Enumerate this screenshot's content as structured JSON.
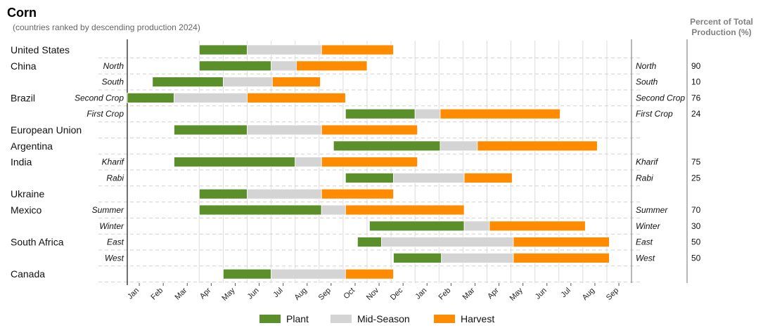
{
  "title": "Corn",
  "subtitle": "(countries ranked by descending production 2024)",
  "right_header": [
    "Percent of Total",
    "Production (%)"
  ],
  "colors": {
    "plant": "#5b8f29",
    "mid": "#d4d4d4",
    "harvest": "#ff8c00"
  },
  "legend": [
    {
      "key": "plant",
      "label": "Plant"
    },
    {
      "key": "mid",
      "label": "Mid-Season"
    },
    {
      "key": "harvest",
      "label": "Harvest"
    }
  ],
  "chart_data": {
    "type": "gantt",
    "months": [
      "Jan",
      "Feb",
      "Mar",
      "Apr",
      "May",
      "Jun",
      "Jul",
      "Aug",
      "Sep",
      "Oct",
      "Nov",
      "Dec",
      "Jan",
      "Feb",
      "Mar",
      "Apr",
      "May",
      "Jun",
      "Jul",
      "Aug",
      "Sep"
    ],
    "rows": [
      {
        "country": "United States",
        "region": "",
        "percent": "",
        "plant": [
          3.0,
          5.0
        ],
        "mid": [
          5.0,
          8.1
        ],
        "harvest": [
          8.1,
          11.1
        ]
      },
      {
        "country": "China",
        "region": "North",
        "percent": "90",
        "plant": [
          3.0,
          6.0
        ],
        "mid": [
          6.0,
          7.05
        ],
        "harvest": [
          7.05,
          10.0
        ]
      },
      {
        "country": "",
        "region": "South",
        "percent": "10",
        "plant": [
          1.05,
          4.0
        ],
        "mid": [
          4.0,
          6.05
        ],
        "harvest": [
          6.05,
          8.05
        ]
      },
      {
        "country": "Brazil",
        "region": "Second Crop",
        "percent": "76",
        "plant": [
          0.0,
          1.95
        ],
        "mid": [
          1.95,
          5.0
        ],
        "harvest": [
          5.0,
          9.1
        ]
      },
      {
        "country": "",
        "region": "First Crop",
        "percent": "24",
        "plant": [
          9.1,
          12.0
        ],
        "mid": [
          12.0,
          13.05
        ],
        "harvest": [
          13.05,
          18.05
        ]
      },
      {
        "country": "European Union",
        "region": "",
        "percent": "",
        "plant": [
          1.95,
          5.0
        ],
        "mid": [
          5.0,
          8.1
        ],
        "harvest": [
          8.1,
          12.1
        ]
      },
      {
        "country": "Argentina",
        "region": "",
        "percent": "",
        "plant": [
          8.6,
          13.05
        ],
        "mid": [
          13.05,
          14.6
        ],
        "harvest": [
          14.6,
          19.6
        ]
      },
      {
        "country": "India",
        "region": "Kharif",
        "percent": "75",
        "plant": [
          1.95,
          7.0
        ],
        "mid": [
          7.0,
          8.1
        ],
        "harvest": [
          8.1,
          12.1
        ]
      },
      {
        "country": "",
        "region": "Rabi",
        "percent": "25",
        "plant": [
          9.1,
          11.1
        ],
        "mid": [
          11.1,
          14.05
        ],
        "harvest": [
          14.05,
          16.05
        ]
      },
      {
        "country": "Ukraine",
        "region": "",
        "percent": "",
        "plant": [
          3.0,
          5.0
        ],
        "mid": [
          5.0,
          8.1
        ],
        "harvest": [
          8.1,
          11.1
        ]
      },
      {
        "country": "Mexico",
        "region": "Summer",
        "percent": "70",
        "plant": [
          3.0,
          8.1
        ],
        "mid": [
          8.1,
          9.1
        ],
        "harvest": [
          9.1,
          14.05
        ]
      },
      {
        "country": "",
        "region": "Winter",
        "percent": "30",
        "plant": [
          10.1,
          14.05
        ],
        "mid": [
          14.05,
          15.1
        ],
        "harvest": [
          15.1,
          19.1
        ]
      },
      {
        "country": "South Africa",
        "region": "East",
        "percent": "50",
        "plant": [
          9.6,
          10.6
        ],
        "mid": [
          10.6,
          16.1
        ],
        "harvest": [
          16.1,
          20.1
        ]
      },
      {
        "country": "",
        "region": "West",
        "percent": "50",
        "plant": [
          11.1,
          13.1
        ],
        "mid": [
          13.1,
          16.1
        ],
        "harvest": [
          16.1,
          20.1
        ]
      },
      {
        "country": "Canada",
        "region": "",
        "percent": "",
        "plant": [
          4.0,
          6.0
        ],
        "mid": [
          6.0,
          9.1
        ],
        "harvest": [
          9.1,
          11.1
        ]
      }
    ]
  }
}
